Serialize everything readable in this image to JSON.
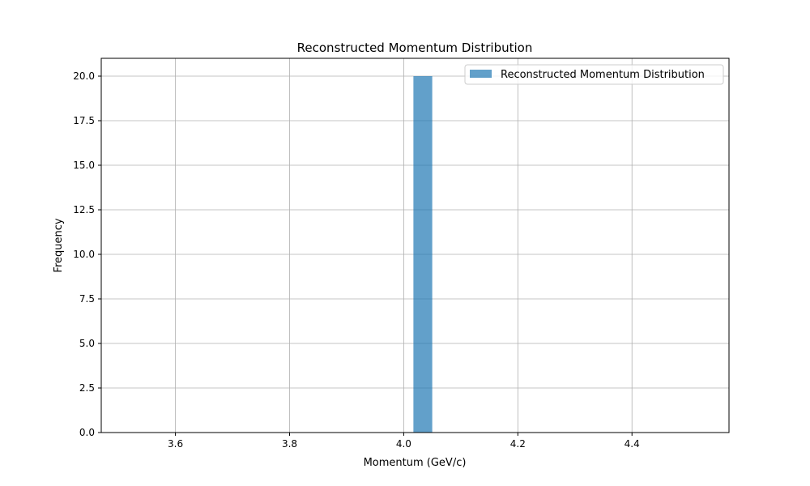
{
  "chart_data": {
    "type": "bar",
    "title": "Reconstructed Momentum Distribution",
    "xlabel": "Momentum (GeV/c)",
    "ylabel": "Frequency",
    "xlim": [
      3.47,
      4.57
    ],
    "ylim": [
      0,
      21
    ],
    "xticks": [
      3.6,
      3.8,
      4.0,
      4.2,
      4.4
    ],
    "xtick_labels": [
      "3.6",
      "3.8",
      "4.0",
      "4.2",
      "4.4"
    ],
    "yticks": [
      0,
      2.5,
      5,
      7.5,
      10,
      12.5,
      15,
      17.5,
      20
    ],
    "ytick_labels": [
      "0.0",
      "2.5",
      "5.0",
      "7.5",
      "10.0",
      "12.5",
      "15.0",
      "17.5",
      "20.0"
    ],
    "grid": true,
    "legend_position": "top-right",
    "series": [
      {
        "name": "Reconstructed Momentum Distribution",
        "color": "#1f77b4",
        "bins": [
          {
            "x0": 4.017,
            "x1": 4.05,
            "value": 20
          }
        ]
      }
    ]
  }
}
